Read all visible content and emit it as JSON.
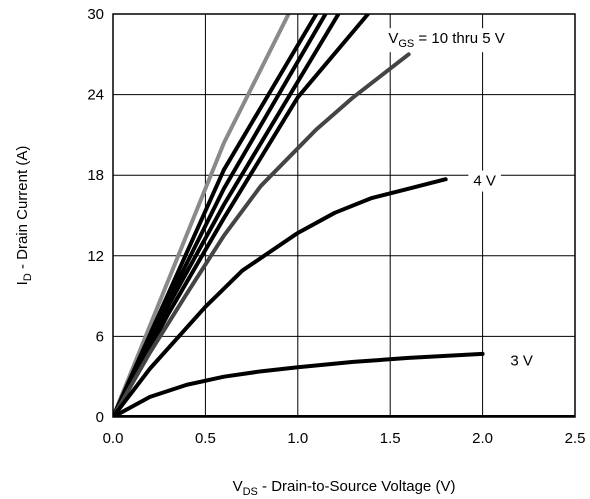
{
  "chart_data": {
    "type": "line",
    "xlabel": {
      "main": "V",
      "sub": "DS",
      "rest": " - Drain-to-Source Voltage (V)"
    },
    "ylabel": {
      "main": "I",
      "sub": "D",
      "rest": " - Drain Current (A)"
    },
    "xlim": [
      0,
      2.5
    ],
    "ylim": [
      0,
      30
    ],
    "x_ticks": [
      "0.0",
      "0.5",
      "1.0",
      "1.5",
      "2.0",
      "2.5"
    ],
    "y_ticks": [
      "0",
      "6",
      "12",
      "18",
      "24",
      "30"
    ],
    "grid": true,
    "annotations": [
      {
        "id": "vgs",
        "main": "V",
        "sub": "GS",
        "rest": " = 10 thru 5 V",
        "x": 1.49,
        "y": 28.2
      },
      {
        "id": "v4",
        "text": "4 V",
        "x": 1.95,
        "y": 17.6
      },
      {
        "id": "v3",
        "text": "3 V",
        "x": 2.15,
        "y": 4.2
      }
    ],
    "series": [
      {
        "id": "vgs-10v",
        "color": "#8a8a8a",
        "x": [
          0,
          0.3,
          0.6,
          0.95
        ],
        "y": [
          0,
          10.2,
          20.4,
          30
        ]
      },
      {
        "id": "vgs-9v",
        "color": "#000000",
        "x": [
          0,
          0.3,
          0.6,
          1.1
        ],
        "y": [
          0,
          9.2,
          18.4,
          30
        ]
      },
      {
        "id": "vgs-8v",
        "color": "#000000",
        "x": [
          0,
          0.3,
          0.6,
          1.15
        ],
        "y": [
          0,
          8.7,
          17.0,
          30
        ]
      },
      {
        "id": "vgs-7v",
        "color": "#000000",
        "x": [
          0,
          0.3,
          0.6,
          1.22
        ],
        "y": [
          0,
          8.3,
          15.8,
          30
        ]
      },
      {
        "id": "vgs-6v",
        "color": "#000000",
        "x": [
          0,
          0.3,
          0.6,
          1.0,
          1.38
        ],
        "y": [
          0,
          7.7,
          14.8,
          23.8,
          30
        ]
      },
      {
        "id": "vgs-5v",
        "color": "#444444",
        "x": [
          0,
          0.2,
          0.4,
          0.6,
          0.8,
          1.0,
          1.1,
          1.3,
          1.6
        ],
        "y": [
          0,
          4.8,
          9.2,
          13.5,
          17.2,
          20.0,
          21.4,
          23.8,
          27.0
        ]
      },
      {
        "id": "vgs-4v",
        "color": "#000000",
        "x": [
          0,
          0.2,
          0.5,
          0.7,
          1.0,
          1.2,
          1.4,
          1.6,
          1.8
        ],
        "y": [
          0,
          3.6,
          8.2,
          10.9,
          13.7,
          15.2,
          16.3,
          17.0,
          17.7
        ]
      },
      {
        "id": "vgs-3v",
        "color": "#000000",
        "x": [
          0,
          0.2,
          0.4,
          0.6,
          0.8,
          1.0,
          1.3,
          1.6,
          2.0
        ],
        "y": [
          0,
          1.5,
          2.4,
          3.0,
          3.4,
          3.7,
          4.1,
          4.4,
          4.7
        ]
      },
      {
        "id": "vgs-below",
        "color": "#000000",
        "x": [
          0,
          2.5
        ],
        "y": [
          0,
          0
        ]
      }
    ]
  }
}
